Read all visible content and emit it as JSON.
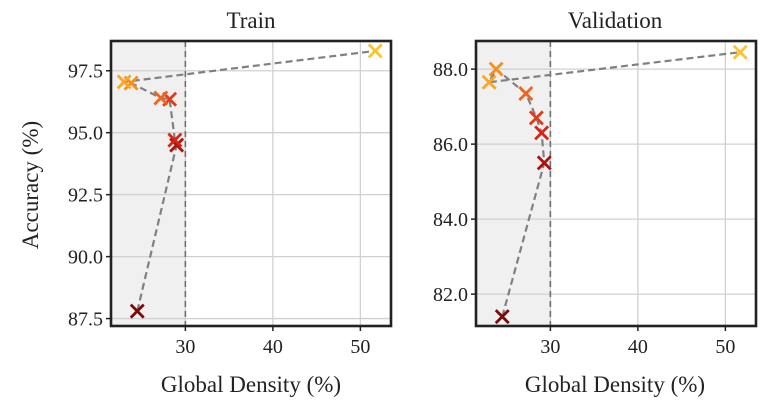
{
  "chart_data": [
    {
      "type": "scatter",
      "title": "Train",
      "xlabel": "Global Density (%)",
      "ylabel": "Accuracy (%)",
      "xlim": [
        21.5,
        53.5
      ],
      "ylim": [
        87.2,
        98.7
      ],
      "xticks": [
        30,
        40,
        50
      ],
      "yticks": [
        87.5,
        90.0,
        92.5,
        95.0,
        97.5
      ],
      "ytick_format": 1,
      "threshold_x": 30,
      "shade_region": [
        21.5,
        30
      ],
      "grid": true,
      "points": [
        {
          "x": 24.5,
          "y": 87.8,
          "color": "#7a0a0a"
        },
        {
          "x": 29.0,
          "y": 94.5,
          "color": "#b0120f"
        },
        {
          "x": 28.8,
          "y": 94.7,
          "color": "#d42515"
        },
        {
          "x": 28.2,
          "y": 96.35,
          "color": "#e33b19"
        },
        {
          "x": 27.2,
          "y": 96.4,
          "color": "#f0641d"
        },
        {
          "x": 23.8,
          "y": 97.0,
          "color": "#f5901f"
        },
        {
          "x": 23.0,
          "y": 97.05,
          "color": "#f8a824"
        },
        {
          "x": 51.7,
          "y": 98.3,
          "color": "#f9c42d"
        }
      ]
    },
    {
      "type": "scatter",
      "title": "Validation",
      "xlabel": "Global Density (%)",
      "ylabel": "",
      "xlim": [
        21.5,
        53.5
      ],
      "ylim": [
        81.15,
        88.75
      ],
      "xticks": [
        30,
        40,
        50
      ],
      "yticks": [
        82.0,
        84.0,
        86.0,
        88.0
      ],
      "ytick_format": 1,
      "threshold_x": 30,
      "shade_region": [
        21.5,
        30
      ],
      "grid": true,
      "points": [
        {
          "x": 24.5,
          "y": 81.4,
          "color": "#7a0a0a"
        },
        {
          "x": 29.3,
          "y": 85.5,
          "color": "#b0120f"
        },
        {
          "x": 29.0,
          "y": 86.3,
          "color": "#d42515"
        },
        {
          "x": 28.4,
          "y": 86.7,
          "color": "#e33b19"
        },
        {
          "x": 27.2,
          "y": 87.35,
          "color": "#f0641d"
        },
        {
          "x": 23.8,
          "y": 88.0,
          "color": "#f5901f"
        },
        {
          "x": 23.0,
          "y": 87.65,
          "color": "#f8a824"
        },
        {
          "x": 51.7,
          "y": 88.45,
          "color": "#f9c42d"
        }
      ]
    }
  ]
}
